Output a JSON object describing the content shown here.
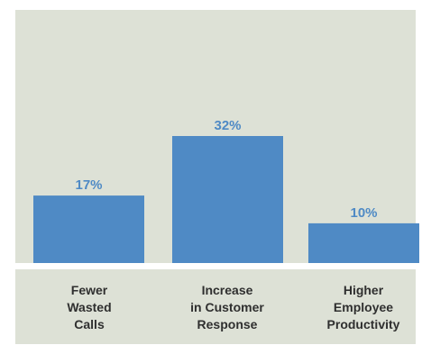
{
  "chart_data": {
    "type": "bar",
    "categories": [
      [
        "Fewer",
        "Wasted",
        "Calls"
      ],
      [
        "Increase",
        "in Customer",
        "Response"
      ],
      [
        "Higher",
        "Employee",
        "Productivity"
      ]
    ],
    "values": [
      17,
      32,
      10
    ],
    "value_labels": [
      "17%",
      "32%",
      "10%"
    ],
    "ylim": [
      0,
      45
    ],
    "grid": false,
    "legend": "none"
  },
  "colors": {
    "background_panel": "#dde1d6",
    "bar": "#4f8ac5",
    "value_label": "#4f8ac5",
    "category_label": "#2f2f2f"
  }
}
